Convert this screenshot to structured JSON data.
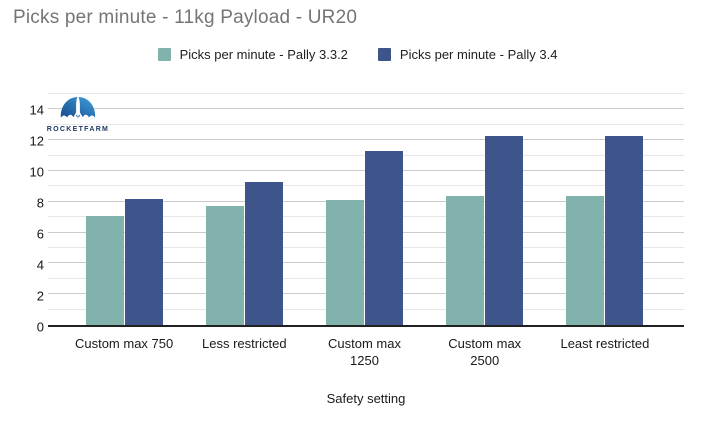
{
  "title": "Picks per minute - 11kg Payload - UR20",
  "logo": {
    "text": "ROCKETFARM"
  },
  "colors": {
    "series1": "#81b2ac",
    "series2": "#3e558c",
    "title_gray": "#757575",
    "gridline_major": "#cccccc",
    "gridline_minor": "#e7e7e7",
    "axis_line": "#212121",
    "logo_blue_dark": "#164a8c",
    "logo_blue_light": "#42a0dc"
  },
  "chart_data": {
    "type": "bar",
    "title": "Picks per minute - 11kg Payload - UR20",
    "xlabel": "Safety setting",
    "ylabel": "",
    "ylim": [
      0,
      15
    ],
    "yticks": [
      0,
      2,
      4,
      6,
      8,
      10,
      12,
      14
    ],
    "grid": "horizontal major every 2, minor every 1",
    "legend_position": "top-center",
    "categories": [
      "Custom max 750",
      "Less restricted",
      "Custom max 1250",
      "Custom max 2500",
      "Least restricted"
    ],
    "category_label_lines": [
      [
        "Custom max 750"
      ],
      [
        "Less restricted"
      ],
      [
        "Custom max",
        "1250"
      ],
      [
        "Custom max",
        "2500"
      ],
      [
        "Least restricted"
      ]
    ],
    "series": [
      {
        "name": "Picks per minute - Pally 3.3.2",
        "color": "#81b2ac",
        "values": [
          7.1,
          7.7,
          8.1,
          8.4,
          8.4
        ]
      },
      {
        "name": "Picks per minute - Pally 3.4",
        "color": "#3e558c",
        "values": [
          8.2,
          9.3,
          11.3,
          12.3,
          12.3
        ]
      }
    ]
  }
}
